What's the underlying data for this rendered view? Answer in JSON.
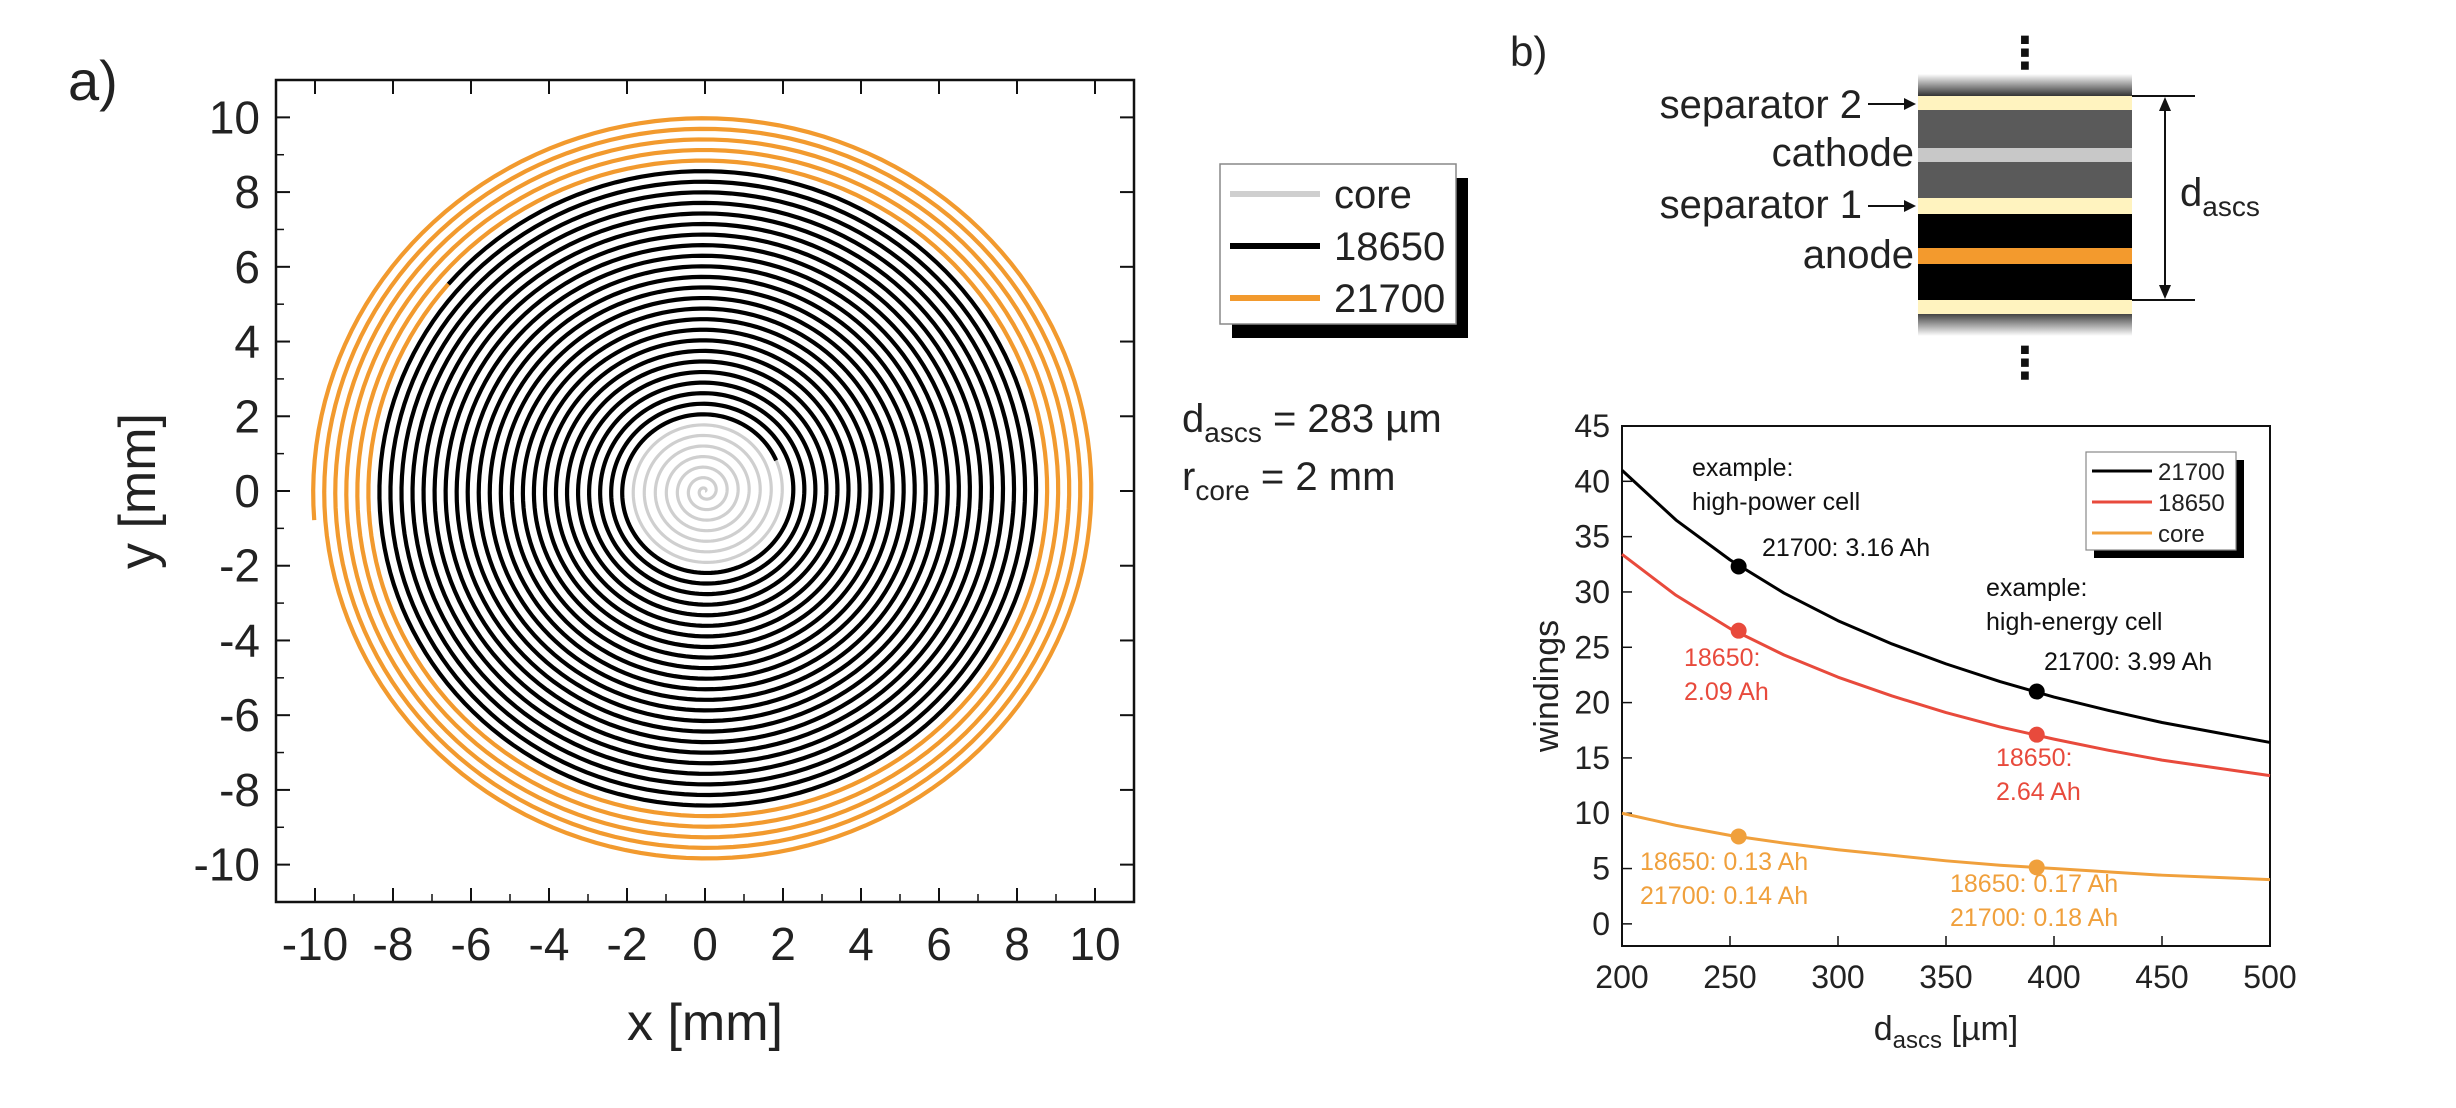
{
  "colors": {
    "core": "#cfcfcf",
    "cell18650": "#000000",
    "cell21700": "#f29a2e",
    "red": "#e84a3c",
    "orange": "#f0a03c",
    "separator": "#fff3bf",
    "cathode_gray": "#5a5a5a",
    "cathode_light": "#c8c8c8",
    "anode_black": "#000000",
    "anode_orange": "#f39a2d"
  },
  "panel_a": {
    "panel_label": "a)",
    "chart_data": {
      "type": "line",
      "subtype": "spiral",
      "xlabel": "x [mm]",
      "ylabel": "y [mm]",
      "xlim": [
        -11,
        11
      ],
      "ylim": [
        -11,
        11
      ],
      "xticks": [
        -10,
        -8,
        -6,
        -4,
        -2,
        0,
        2,
        4,
        6,
        8,
        10
      ],
      "yticks": [
        -10,
        -8,
        -6,
        -4,
        -2,
        0,
        2,
        4,
        6,
        8,
        10
      ],
      "xtick_labels": [
        "-10",
        "-8",
        "-6",
        "-4",
        "-2",
        "0",
        "2",
        "4",
        "6",
        "8",
        "10"
      ],
      "ytick_labels": [
        "-10",
        "-8",
        "-6",
        "-4",
        "-2",
        "0",
        "2",
        "4",
        "6",
        "8",
        "10"
      ],
      "grid": false,
      "legend_position": "right-outside",
      "series": [
        {
          "name": "core",
          "color": "#cfcfcf",
          "r_start": 0.0,
          "r_end": 2.0,
          "pitch": 0.283
        },
        {
          "name": "18650",
          "color": "#000000",
          "r_start": 2.0,
          "r_end": 8.6,
          "pitch": 0.283
        },
        {
          "name": "21700",
          "color": "#f29a2e",
          "r_start": 8.6,
          "r_end": 10.05,
          "pitch": 0.283
        }
      ]
    },
    "legend": [
      {
        "label": "core",
        "color": "#cfcfcf"
      },
      {
        "label": "18650",
        "color": "#000000"
      },
      {
        "label": "21700",
        "color": "#f29a2e"
      }
    ],
    "annotation": {
      "d_main": "d",
      "d_sub": "ascs",
      "d_value": " = 283 µm",
      "r_main": "r",
      "r_sub": "core",
      "r_value": " = 2 mm"
    }
  },
  "panel_b": {
    "panel_label": "b)",
    "layer_stack": {
      "labels": {
        "separator2": "separator 2",
        "cathode": "cathode",
        "separator1": "separator 1",
        "anode": "anode",
        "dots_top": "⋮",
        "dots_bottom": "⋮"
      },
      "thickness_main": "d",
      "thickness_sub": "ascs"
    },
    "chart_data": {
      "type": "line",
      "xlabel_main": "d",
      "xlabel_sub": "ascs",
      "xlabel_unit": " [µm]",
      "ylabel": "windings",
      "xlim": [
        200,
        500
      ],
      "ylim": [
        -2,
        45
      ],
      "xticks": [
        200,
        250,
        300,
        350,
        400,
        450,
        500
      ],
      "yticks": [
        0,
        5,
        10,
        15,
        20,
        25,
        30,
        35,
        40,
        45
      ],
      "xtick_labels": [
        "200",
        "250",
        "300",
        "350",
        "400",
        "450",
        "500"
      ],
      "ytick_labels": [
        "0",
        "5",
        "10",
        "15",
        "20",
        "25",
        "30",
        "35",
        "40",
        "45"
      ],
      "grid": false,
      "legend_position": "top-right",
      "x": [
        200,
        225,
        250,
        275,
        300,
        325,
        350,
        375,
        400,
        425,
        450,
        475,
        500
      ],
      "series": [
        {
          "name": "21700",
          "color": "#000000",
          "values": [
            41.0,
            36.5,
            32.9,
            29.9,
            27.4,
            25.3,
            23.5,
            21.9,
            20.5,
            19.3,
            18.2,
            17.3,
            16.4
          ]
        },
        {
          "name": "18650",
          "color": "#e84a3c",
          "values": [
            33.4,
            29.7,
            26.7,
            24.3,
            22.3,
            20.6,
            19.1,
            17.8,
            16.7,
            15.7,
            14.8,
            14.1,
            13.4
          ]
        },
        {
          "name": "core",
          "color": "#f0a03c",
          "values": [
            10.0,
            8.9,
            8.0,
            7.3,
            6.7,
            6.2,
            5.7,
            5.3,
            5.0,
            4.7,
            4.4,
            4.2,
            4.0
          ]
        }
      ],
      "markers": [
        {
          "x": 254,
          "y": 32.3,
          "color": "#000000"
        },
        {
          "x": 254,
          "y": 26.5,
          "color": "#e84a3c"
        },
        {
          "x": 254,
          "y": 7.9,
          "color": "#f0a03c"
        },
        {
          "x": 392,
          "y": 21.0,
          "color": "#000000"
        },
        {
          "x": 392,
          "y": 17.1,
          "color": "#e84a3c"
        },
        {
          "x": 392,
          "y": 5.1,
          "color": "#f0a03c"
        }
      ],
      "annotations": {
        "hp_title_1": "example:",
        "hp_title_2": "high-power cell",
        "hp_21700": "21700: 3.16 Ah",
        "hp_18650_1": "18650:",
        "hp_18650_2": "2.09 Ah",
        "hp_core_1": "18650: 0.13 Ah",
        "hp_core_2": "21700: 0.14 Ah",
        "he_title_1": "example:",
        "he_title_2": "high-energy cell",
        "he_21700": "21700: 3.99 Ah",
        "he_18650_1": "18650:",
        "he_18650_2": "2.64 Ah",
        "he_core_1": "18650: 0.17 Ah",
        "he_core_2": "21700: 0.18 Ah"
      }
    },
    "legend": [
      {
        "label": "21700",
        "color": "#000000"
      },
      {
        "label": "18650",
        "color": "#e84a3c"
      },
      {
        "label": "core",
        "color": "#f0a03c"
      }
    ]
  }
}
